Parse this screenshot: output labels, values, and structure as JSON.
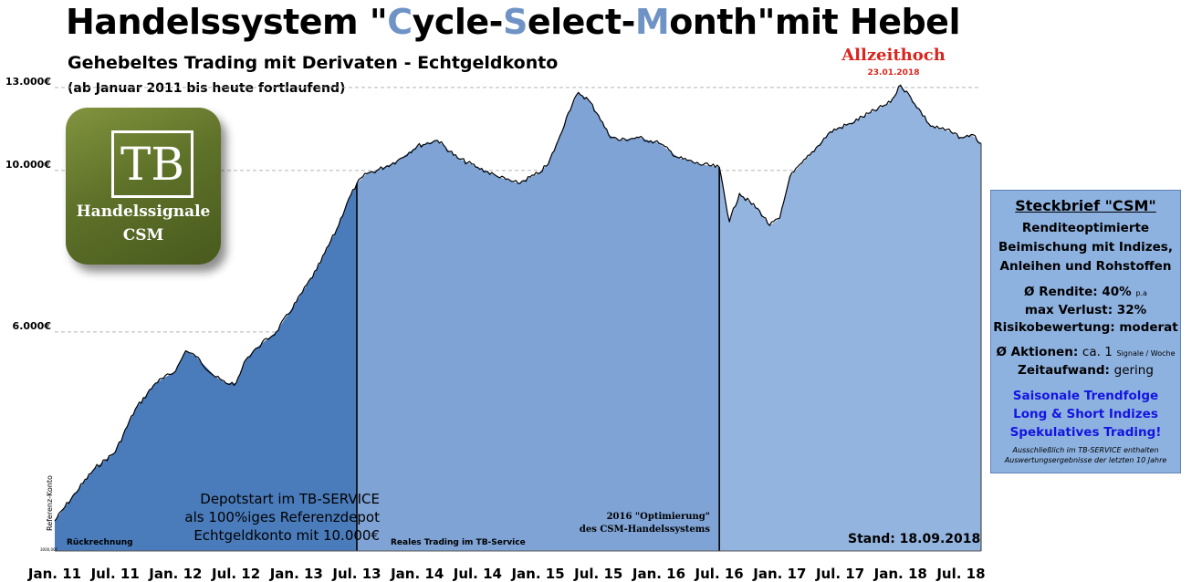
{
  "header": {
    "title_parts": [
      {
        "text": "Handelssystem \"",
        "accent": false
      },
      {
        "text": "C",
        "accent": true
      },
      {
        "text": "ycle-",
        "accent": false
      },
      {
        "text": "S",
        "accent": true
      },
      {
        "text": "elect-",
        "accent": false
      },
      {
        "text": "M",
        "accent": true
      },
      {
        "text": "onth\"mit Hebel",
        "accent": false
      }
    ],
    "subtitle": "Gehebeltes Trading mit Derivaten - Echtgeldkonto",
    "period": "(ab Januar 2011 bis heute fortlaufend)"
  },
  "all_time_high": {
    "label": "Allzeithoch",
    "date": "23.01.2018",
    "color": "#d9251d"
  },
  "logo": {
    "letters": "TB",
    "name": "Handelssignale",
    "sub": "CSM",
    "color": "#5f7229"
  },
  "infobox": {
    "title": "Steckbrief \"CSM\"",
    "desc1": "Renditeoptimierte",
    "desc2": "Beimischung mit Indizes,",
    "desc3": "Anleihen und Rohstoffen",
    "rendite_label": "Ø Rendite: 40%",
    "rendite_unit": "p.a",
    "max_loss": "max Verlust: 32%",
    "risk": "Risikobewertung: moderat",
    "actions_label": "Ø Aktionen:",
    "actions_value": "ca. 1",
    "actions_unit": "Signale / Woche",
    "effort_label": "Zeitaufwand:",
    "effort_value": "gering",
    "blue1": "Saisonale Trendfolge",
    "blue2": "Long & Short Indizes",
    "blue3": "Spekulatives Trading!",
    "note1": "Ausschließlich im TB-SERVICE enthalten",
    "note2": "Auswertungsergebnisse der letzten 10 Jahre",
    "bg_color": "#8eb2e0",
    "accent_text_color": "#1414e0"
  },
  "annotations": {
    "depot1": "Depotstart im TB-SERVICE",
    "depot2": "als 100%iges Referenzdepot",
    "depot3": "Echtgeldkonto mit 10.000€",
    "backtest": "Rückrechnung",
    "real": "Reales Trading im TB-Service",
    "opt1": "2016 \"Optimierung\"",
    "opt2": "des CSM-Handelssystems",
    "stand": "Stand: 18.09.2018"
  },
  "axis_extra": {
    "ylabel": "Referenz-Konto",
    "ybase": "3000,00€"
  },
  "chart_data": {
    "type": "area",
    "x_tick_labels": [
      "Jan. 11",
      "Jul. 11",
      "Jan. 12",
      "Jul. 12",
      "Jan. 13",
      "Jul. 13",
      "Jan. 14",
      "Jul. 14",
      "Jan. 15",
      "Jul. 15",
      "Jan. 16",
      "Jul. 16",
      "Jan. 17",
      "Jul. 17",
      "Jan. 18",
      "Jul. 18"
    ],
    "y_ticks": [
      {
        "label": "6.000€",
        "value": 6000
      },
      {
        "label": "10.000€",
        "value": 10000
      },
      {
        "label": "13.000€",
        "value": 13000
      }
    ],
    "y_scale": "log",
    "ylim": [
      3000,
      13300
    ],
    "xlim": [
      "2011-01",
      "2018-09"
    ],
    "grid": "horizontal dashed",
    "segments": [
      {
        "name": "Rückrechnung",
        "from": "2011-01",
        "to": "2013-07",
        "color": "#4a7cbc"
      },
      {
        "name": "Reales Trading im TB-Service",
        "from": "2013-07",
        "to": "2016-07",
        "color": "#7ea3d4"
      },
      {
        "name": "",
        "from": "2016-07",
        "to": "2018-09",
        "color": "#93b4df"
      }
    ],
    "series": [
      {
        "name": "Referenz-Konto",
        "points": [
          [
            "2011-01",
            3300
          ],
          [
            "2011-03",
            3600
          ],
          [
            "2011-05",
            3900
          ],
          [
            "2011-07",
            4100
          ],
          [
            "2011-09",
            4700
          ],
          [
            "2011-11",
            5100
          ],
          [
            "2012-01",
            5300
          ],
          [
            "2012-02",
            5650
          ],
          [
            "2012-03",
            5550
          ],
          [
            "2012-05",
            5200
          ],
          [
            "2012-06",
            5100
          ],
          [
            "2012-07",
            5100
          ],
          [
            "2012-08",
            5500
          ],
          [
            "2012-09",
            5700
          ],
          [
            "2012-11",
            6000
          ],
          [
            "2013-01",
            6600
          ],
          [
            "2013-03",
            7300
          ],
          [
            "2013-05",
            8300
          ],
          [
            "2013-06",
            9000
          ],
          [
            "2013-07",
            9600
          ],
          [
            "2013-08",
            9900
          ],
          [
            "2013-09",
            10000
          ],
          [
            "2013-11",
            10300
          ],
          [
            "2014-01",
            10800
          ],
          [
            "2014-03",
            11000
          ],
          [
            "2014-05",
            10400
          ],
          [
            "2014-07",
            10100
          ],
          [
            "2014-09",
            9800
          ],
          [
            "2014-11",
            9600
          ],
          [
            "2015-01",
            9900
          ],
          [
            "2015-02",
            10200
          ],
          [
            "2015-03",
            11000
          ],
          [
            "2015-04",
            12000
          ],
          [
            "2015-05",
            12800
          ],
          [
            "2015-06",
            12500
          ],
          [
            "2015-07",
            11900
          ],
          [
            "2015-08",
            11200
          ],
          [
            "2015-09",
            11000
          ],
          [
            "2015-11",
            11100
          ],
          [
            "2016-01",
            10900
          ],
          [
            "2016-03",
            10400
          ],
          [
            "2016-05",
            10200
          ],
          [
            "2016-07",
            10100
          ],
          [
            "2016-08",
            8500
          ],
          [
            "2016-09",
            9300
          ],
          [
            "2016-11",
            8800
          ],
          [
            "2016-12",
            8400
          ],
          [
            "2017-01",
            8600
          ],
          [
            "2017-02",
            9800
          ],
          [
            "2017-04",
            10500
          ],
          [
            "2017-06",
            11300
          ],
          [
            "2017-08",
            11600
          ],
          [
            "2017-10",
            12000
          ],
          [
            "2017-12",
            12400
          ],
          [
            "2018-01",
            13100
          ],
          [
            "2018-02",
            12600
          ],
          [
            "2018-04",
            11500
          ],
          [
            "2018-06",
            11300
          ],
          [
            "2018-07",
            11100
          ],
          [
            "2018-08",
            11200
          ],
          [
            "2018-09",
            10900
          ]
        ]
      }
    ]
  }
}
